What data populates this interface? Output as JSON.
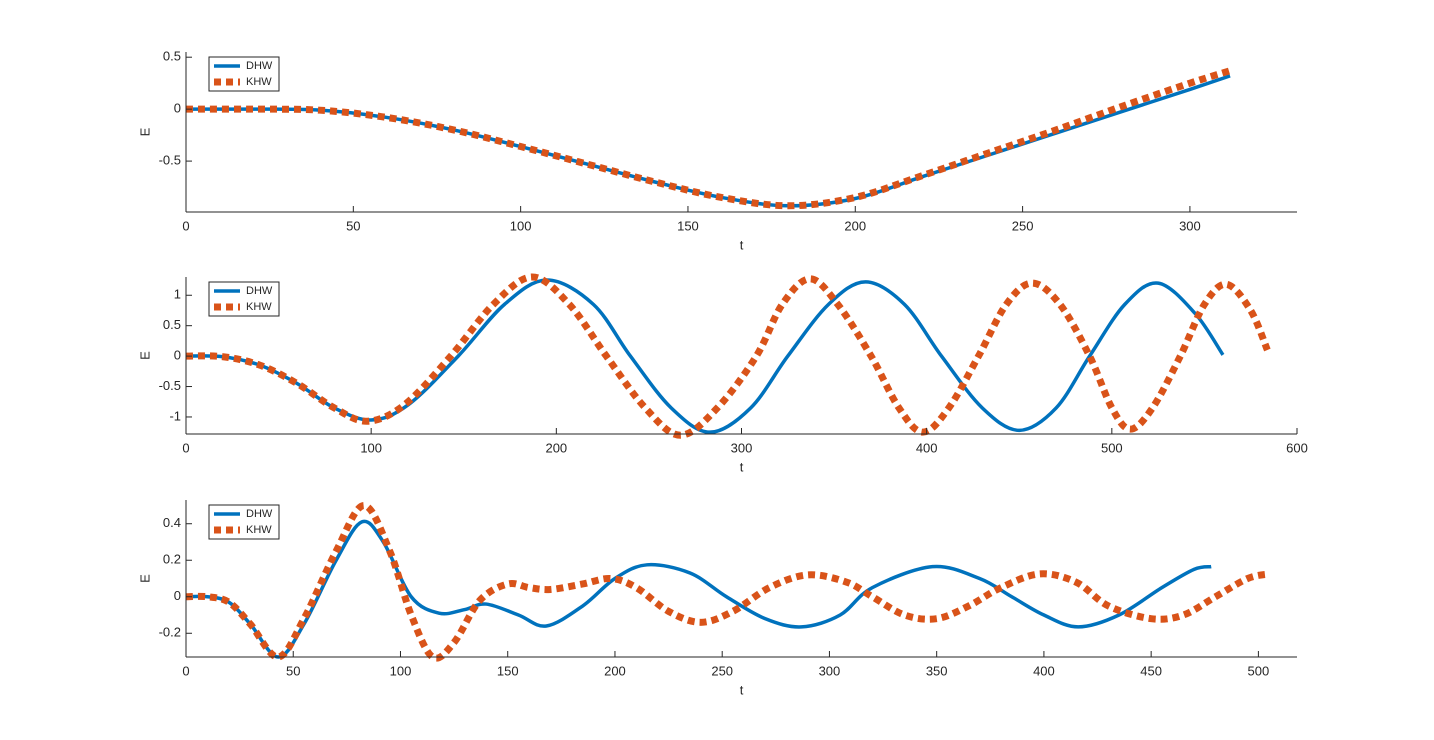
{
  "chart_data": [
    {
      "type": "line",
      "xlabel": "t",
      "ylabel": "E",
      "xlim": [
        0,
        332
      ],
      "ylim": [
        -0.99,
        0.55
      ],
      "xticks": [
        0,
        50,
        100,
        150,
        200,
        250,
        300
      ],
      "yticks": [
        -0.5,
        0,
        0.5
      ],
      "legend": "northwest",
      "series": [
        {
          "name": "DHW",
          "color": "#0072BD",
          "style": "solid",
          "x": [
            0,
            20,
            40,
            60,
            80,
            100,
            120,
            140,
            160,
            180,
            200,
            220,
            240,
            260,
            280,
            300,
            312
          ],
          "values": [
            0,
            0,
            -0.01,
            -0.08,
            -0.2,
            -0.36,
            -0.53,
            -0.7,
            -0.85,
            -0.93,
            -0.86,
            -0.65,
            -0.44,
            -0.23,
            -0.02,
            0.19,
            0.32
          ]
        },
        {
          "name": "KHW",
          "color": "#D95319",
          "style": "dotted",
          "x": [
            0,
            20,
            40,
            60,
            80,
            100,
            120,
            140,
            160,
            180,
            200,
            220,
            240,
            260,
            280,
            300,
            312
          ],
          "values": [
            0,
            0,
            -0.01,
            -0.08,
            -0.2,
            -0.36,
            -0.53,
            -0.7,
            -0.85,
            -0.93,
            -0.85,
            -0.64,
            -0.42,
            -0.2,
            0.03,
            0.25,
            0.37
          ]
        }
      ]
    },
    {
      "type": "line",
      "xlabel": "t",
      "ylabel": "E",
      "xlim": [
        0,
        600
      ],
      "ylim": [
        -1.28,
        1.3
      ],
      "xticks": [
        0,
        100,
        200,
        300,
        400,
        500,
        600
      ],
      "yticks": [
        -1,
        -0.5,
        0,
        0.5,
        1
      ],
      "legend": "northwest",
      "series": [
        {
          "name": "DHW",
          "color": "#0072BD",
          "style": "solid",
          "x": [
            0,
            20,
            40,
            60,
            80,
            100,
            120,
            147,
            172,
            195,
            220,
            240,
            262,
            283,
            305,
            325,
            347,
            367,
            388,
            408,
            430,
            450,
            470,
            488,
            507,
            525,
            545,
            560
          ],
          "values": [
            0,
            -0.01,
            -0.15,
            -0.45,
            -0.85,
            -1.05,
            -0.8,
            0,
            0.85,
            1.25,
            0.85,
            0,
            -0.85,
            -1.25,
            -0.85,
            0,
            0.85,
            1.22,
            0.85,
            0,
            -0.85,
            -1.22,
            -0.85,
            0,
            0.85,
            1.2,
            0.7,
            0.02
          ]
        },
        {
          "name": "KHW",
          "color": "#D95319",
          "style": "dotted",
          "x": [
            0,
            20,
            40,
            60,
            80,
            98,
            118,
            143,
            166,
            187,
            207,
            227,
            248,
            267,
            287,
            308,
            322,
            337,
            352,
            370,
            385,
            398,
            412,
            428,
            443,
            457,
            472,
            488,
            500,
            510,
            522,
            537,
            550,
            562,
            575,
            584
          ],
          "values": [
            0,
            -0.01,
            -0.15,
            -0.45,
            -0.85,
            -1.07,
            -0.8,
            0,
            0.85,
            1.3,
            0.85,
            0,
            -0.85,
            -1.3,
            -0.85,
            0,
            0.85,
            1.27,
            0.85,
            0,
            -0.85,
            -1.25,
            -0.85,
            0,
            0.85,
            1.2,
            0.85,
            0,
            -0.85,
            -1.2,
            -0.85,
            0,
            0.85,
            1.18,
            0.75,
            0.1
          ]
        }
      ]
    },
    {
      "type": "line",
      "xlabel": "t",
      "ylabel": "E",
      "xlim": [
        0,
        518
      ],
      "ylim": [
        -0.33,
        0.53
      ],
      "xticks": [
        0,
        50,
        100,
        150,
        200,
        250,
        300,
        350,
        400,
        450,
        500
      ],
      "yticks": [
        -0.2,
        0,
        0.2,
        0.4
      ],
      "legend": "northwest",
      "series": [
        {
          "name": "DHW",
          "color": "#0072BD",
          "style": "solid",
          "x": [
            0,
            10,
            20,
            30,
            43,
            55,
            70,
            82,
            92,
            105,
            118,
            130,
            140,
            155,
            168,
            185,
            200,
            215,
            235,
            252,
            270,
            287,
            305,
            320,
            348,
            370,
            385,
            400,
            416,
            435,
            455,
            470,
            478
          ],
          "values": [
            0,
            0,
            -0.03,
            -0.15,
            -0.33,
            -0.15,
            0.2,
            0.41,
            0.3,
            0,
            -0.09,
            -0.07,
            -0.04,
            -0.1,
            -0.16,
            -0.05,
            0.1,
            0.175,
            0.13,
            0,
            -0.12,
            -0.165,
            -0.1,
            0.05,
            0.165,
            0.1,
            0,
            -0.1,
            -0.165,
            -0.1,
            0.05,
            0.15,
            0.165
          ]
        },
        {
          "name": "KHW",
          "color": "#D95319",
          "style": "dotted",
          "x": [
            0,
            10,
            20,
            30,
            43,
            55,
            70,
            83,
            95,
            105,
            115,
            125,
            137,
            150,
            160,
            170,
            185,
            198,
            210,
            225,
            240,
            255,
            272,
            290,
            308,
            320,
            335,
            350,
            365,
            380,
            398,
            415,
            430,
            450,
            465,
            480,
            495,
            505
          ],
          "values": [
            0,
            0,
            -0.03,
            -0.15,
            -0.33,
            -0.12,
            0.25,
            0.5,
            0.25,
            -0.1,
            -0.33,
            -0.25,
            -0.02,
            0.07,
            0.05,
            0.04,
            0.07,
            0.1,
            0.05,
            -0.08,
            -0.14,
            -0.08,
            0.05,
            0.12,
            0.08,
            0,
            -0.1,
            -0.12,
            -0.05,
            0.05,
            0.125,
            0.08,
            -0.05,
            -0.12,
            -0.1,
            0,
            0.1,
            0.125
          ]
        }
      ]
    }
  ]
}
